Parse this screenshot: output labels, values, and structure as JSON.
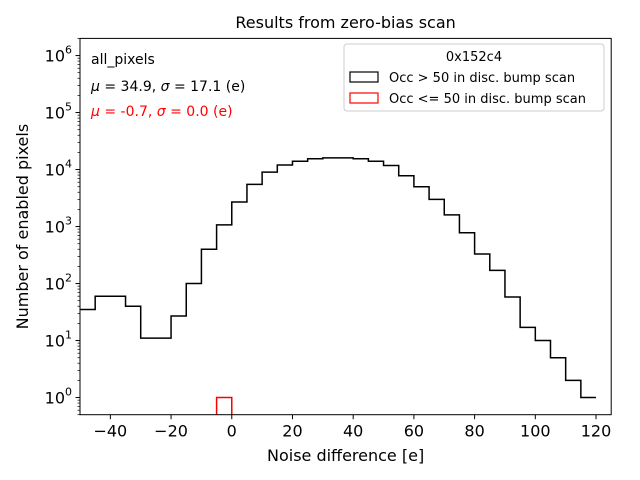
{
  "chart_data": {
    "type": "histogram",
    "title": "Results from zero-bias scan",
    "xlabel": "Noise difference [e]",
    "ylabel": "Number of enabled pixels",
    "xlim": [
      -50,
      125
    ],
    "ylim": [
      0.5,
      2000000
    ],
    "yscale": "log",
    "x_ticks": [
      -40,
      -20,
      0,
      20,
      40,
      60,
      80,
      100,
      120
    ],
    "x_tick_labels": [
      "−40",
      "−20",
      "0",
      "20",
      "40",
      "60",
      "80",
      "100",
      "120"
    ],
    "y_ticks": [
      1,
      10,
      100,
      1000,
      10000,
      100000,
      1000000
    ],
    "y_tick_labels": [
      {
        "base": "10",
        "exp": "0"
      },
      {
        "base": "10",
        "exp": "1"
      },
      {
        "base": "10",
        "exp": "2"
      },
      {
        "base": "10",
        "exp": "3"
      },
      {
        "base": "10",
        "exp": "4"
      },
      {
        "base": "10",
        "exp": "5"
      },
      {
        "base": "10",
        "exp": "6"
      }
    ],
    "grid": false,
    "bin_width": 5,
    "series": [
      {
        "name": "Occ > 50 in disc. bump scan",
        "color": "#000000",
        "bin_edges": [
          -50,
          -45,
          -40,
          -35,
          -30,
          -25,
          -20,
          -15,
          -10,
          -5,
          0,
          5,
          10,
          15,
          20,
          25,
          30,
          35,
          40,
          45,
          50,
          55,
          60,
          65,
          70,
          75,
          80,
          85,
          90,
          95,
          100,
          105,
          110,
          115,
          120
        ],
        "counts": [
          35,
          60,
          60,
          40,
          11,
          11,
          27,
          100,
          400,
          1070,
          2700,
          5500,
          9000,
          12000,
          14000,
          15500,
          16000,
          16000,
          15500,
          14000,
          11800,
          7800,
          5000,
          3000,
          1600,
          780,
          330,
          170,
          58,
          17,
          10,
          5,
          2,
          1
        ]
      },
      {
        "name": "Occ <= 50 in disc. bump scan",
        "color": "#ff0000",
        "bin_edges": [
          -5,
          0
        ],
        "counts": [
          1
        ]
      }
    ],
    "legend": {
      "title": "0x152c4",
      "position": "upper right"
    },
    "annotations": [
      {
        "text": "all_pixels",
        "color": "#000000"
      },
      {
        "mu": "34.9",
        "sigma": "17.1",
        "unit": "(e)",
        "color": "#000000"
      },
      {
        "mu": "-0.7",
        "sigma": "0.0",
        "unit": "(e)",
        "color": "#ff0000"
      }
    ]
  }
}
